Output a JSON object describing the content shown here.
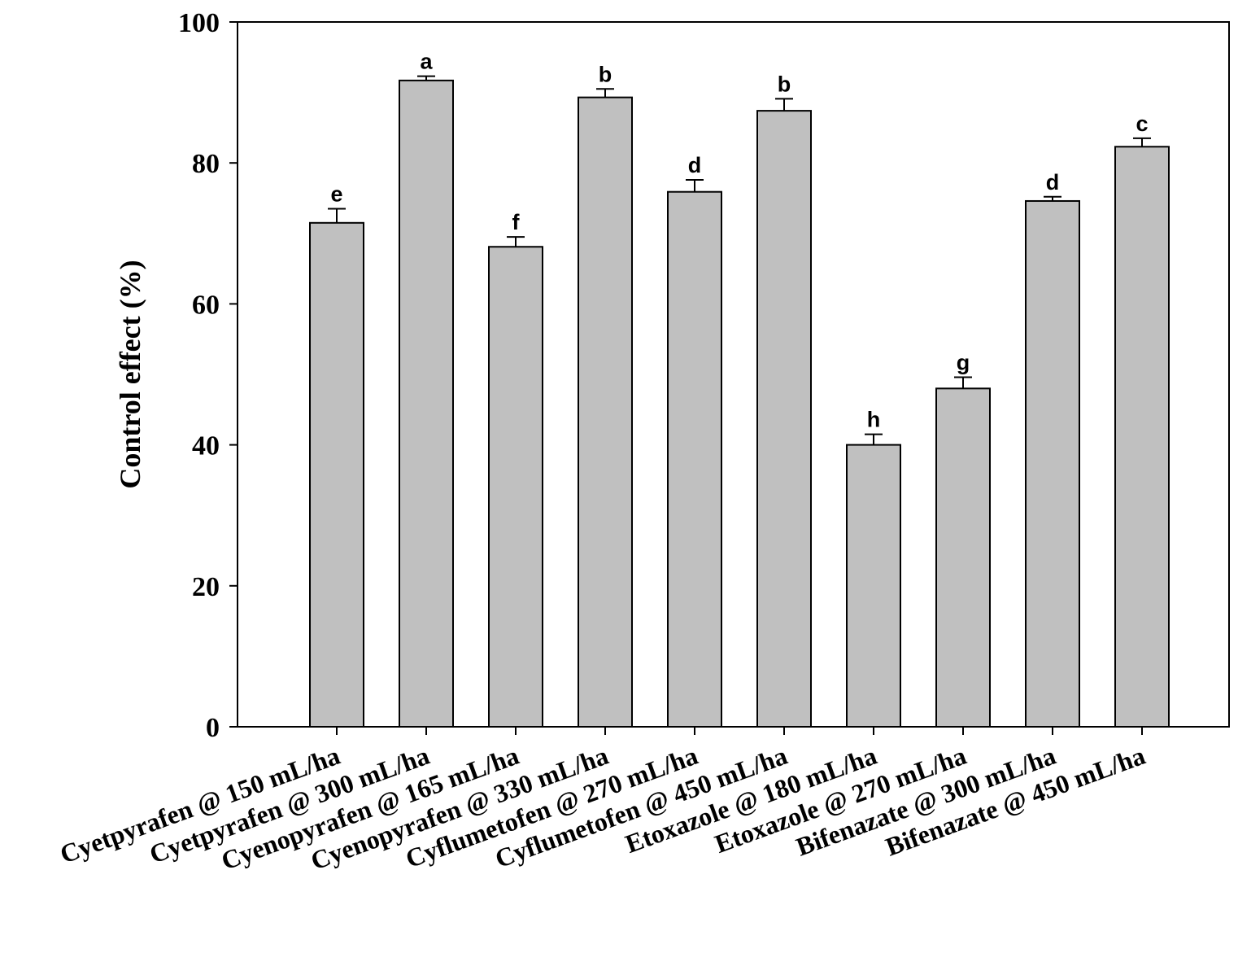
{
  "chart_data": {
    "type": "bar",
    "title": "",
    "xlabel": "",
    "ylabel": "Control effect (%)",
    "ylim": [
      0,
      100
    ],
    "yticks": [
      0,
      20,
      40,
      60,
      80,
      100
    ],
    "grid": false,
    "bar_color": "#c0c0c0",
    "categories": [
      "Cyetpyrafen @ 150 mL/ha",
      "Cyetpyrafen @ 300 mL/ha",
      "Cyenopyrafen @ 165 mL/ha",
      "Cyenopyrafen @ 330 mL/ha",
      "Cyflumetofen @ 270 mL/ha",
      "Cyflumetofen @ 450 mL/ha",
      "Etoxazole @ 180 mL/ha",
      "Etoxazole @ 270 mL/ha",
      "Bifenazate @ 300 mL/ha",
      "Bifenazate @ 450 mL/ha"
    ],
    "values": [
      71.5,
      91.7,
      68.1,
      89.3,
      75.9,
      87.4,
      40.0,
      48.0,
      74.6,
      82.3
    ],
    "errors": [
      2.0,
      0.6,
      1.4,
      1.2,
      1.7,
      1.7,
      1.5,
      1.6,
      0.6,
      1.2
    ],
    "significance": [
      "e",
      "a",
      "f",
      "b",
      "d",
      "b",
      "h",
      "g",
      "d",
      "c"
    ]
  }
}
